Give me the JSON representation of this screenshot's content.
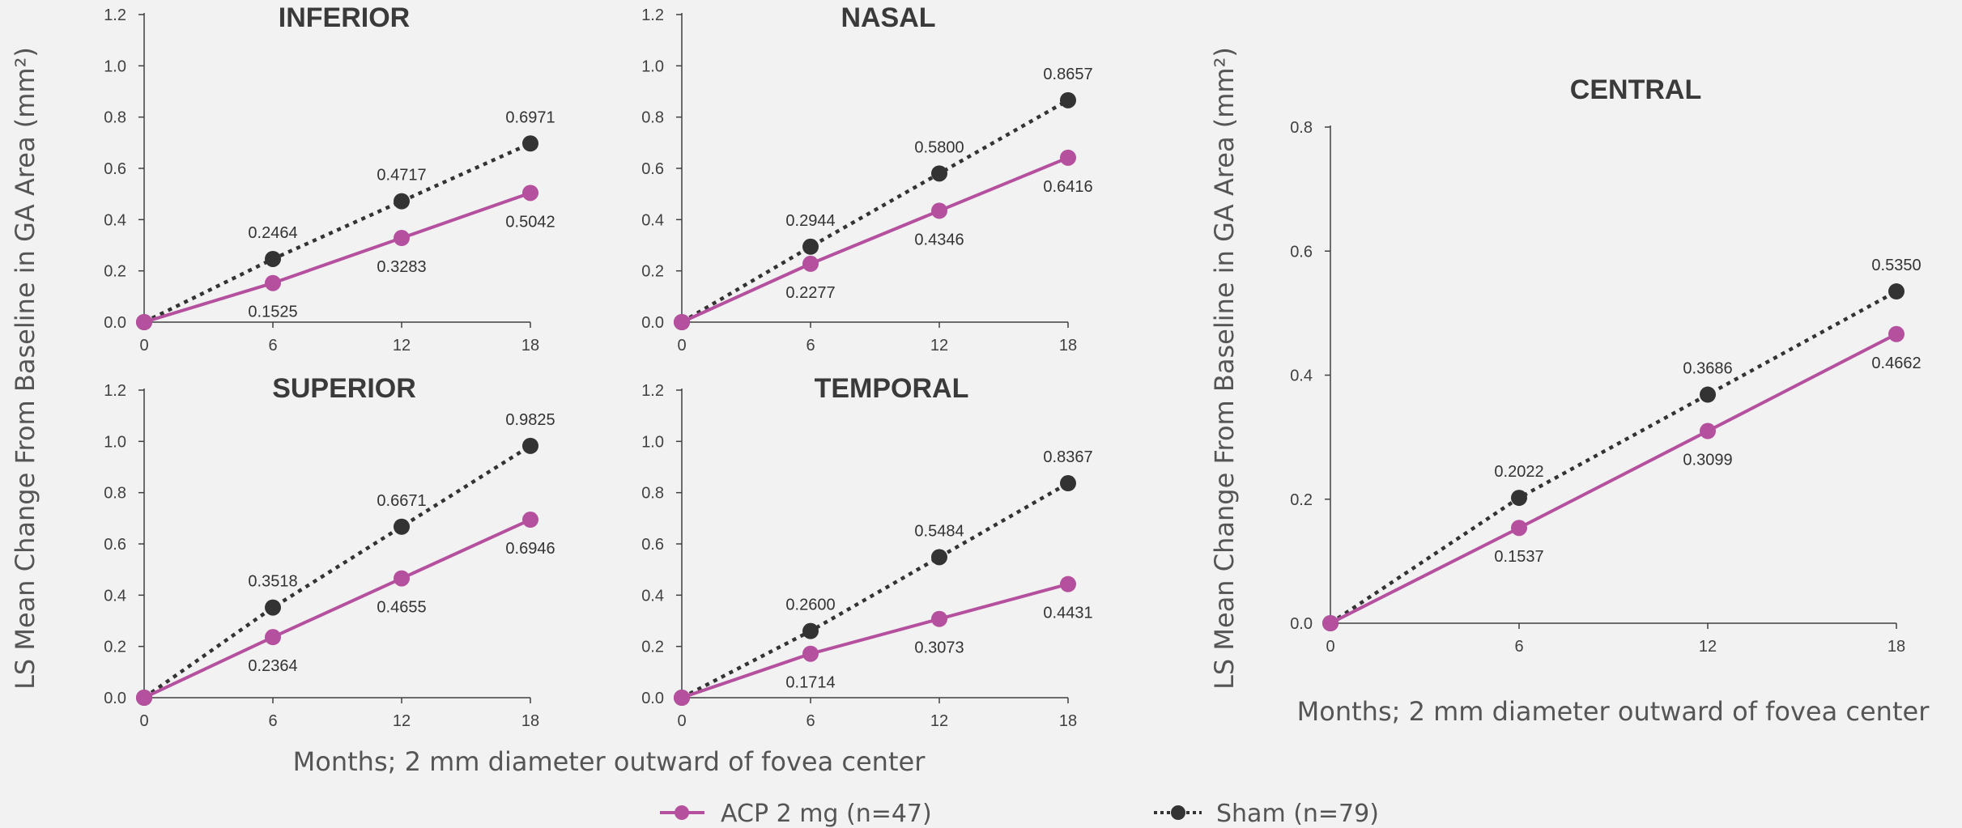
{
  "chart_data": {
    "type": "line",
    "ylabel": "LS Mean Change From Baseline in GA Area (mm²)",
    "xlabel": "Months; 2 mm diameter outward of fovea center",
    "x": [
      0,
      6,
      12,
      18
    ],
    "series_styles": {
      "ACP 2 mg (n=47)": {
        "color": "#b5509e",
        "line": "solid"
      },
      "Sham (n=79)": {
        "color": "#333333",
        "line": "dotted"
      }
    },
    "legend": [
      "ACP 2 mg (n=47)",
      "Sham (n=79)"
    ],
    "legend_position": "bottom",
    "panels": [
      {
        "title": "INFERIOR",
        "ylim": [
          0,
          1.2
        ],
        "yticks": [
          "0.0",
          "0.2",
          "0.4",
          "0.6",
          "0.8",
          "1.0",
          "1.2"
        ],
        "xticks": [
          "0",
          "6",
          "12",
          "18"
        ],
        "series": [
          {
            "name": "ACP 2 mg (n=47)",
            "values": [
              0,
              0.1525,
              0.3283,
              0.5042
            ],
            "labels": [
              "",
              "0.1525",
              "0.3283",
              "0.5042"
            ]
          },
          {
            "name": "Sham (n=79)",
            "values": [
              0,
              0.2464,
              0.4717,
              0.6971
            ],
            "labels": [
              "",
              "0.2464",
              "0.4717",
              "0.6971"
            ]
          }
        ]
      },
      {
        "title": "NASAL",
        "ylim": [
          0,
          1.2
        ],
        "yticks": [
          "0.0",
          "0.2",
          "0.4",
          "0.6",
          "0.8",
          "1.0",
          "1.2"
        ],
        "xticks": [
          "0",
          "6",
          "12",
          "18"
        ],
        "series": [
          {
            "name": "ACP 2 mg (n=47)",
            "values": [
              0,
              0.2277,
              0.4346,
              0.6416
            ],
            "labels": [
              "",
              "0.2277",
              "0.4346",
              "0.6416"
            ]
          },
          {
            "name": "Sham (n=79)",
            "values": [
              0,
              0.2944,
              0.58,
              0.8657
            ],
            "labels": [
              "",
              "0.2944",
              "0.5800",
              "0.8657"
            ]
          }
        ]
      },
      {
        "title": "SUPERIOR",
        "ylim": [
          0,
          1.2
        ],
        "yticks": [
          "0.0",
          "0.2",
          "0.4",
          "0.6",
          "0.8",
          "1.0",
          "1.2"
        ],
        "xticks": [
          "0",
          "6",
          "12",
          "18"
        ],
        "series": [
          {
            "name": "ACP 2 mg (n=47)",
            "values": [
              0,
              0.2364,
              0.4655,
              0.6946
            ],
            "labels": [
              "",
              "0.2364",
              "0.4655",
              "0.6946"
            ]
          },
          {
            "name": "Sham (n=79)",
            "values": [
              0,
              0.3518,
              0.6671,
              0.9825
            ],
            "labels": [
              "",
              "0.3518",
              "0.6671",
              "0.9825"
            ]
          }
        ]
      },
      {
        "title": "TEMPORAL",
        "ylim": [
          0,
          1.2
        ],
        "yticks": [
          "0.0",
          "0.2",
          "0.4",
          "0.6",
          "0.8",
          "1.0",
          "1.2"
        ],
        "xticks": [
          "0",
          "6",
          "12",
          "18"
        ],
        "series": [
          {
            "name": "ACP 2 mg (n=47)",
            "values": [
              0,
              0.1714,
              0.3073,
              0.4431
            ],
            "labels": [
              "",
              "0.1714",
              "0.3073",
              "0.4431"
            ]
          },
          {
            "name": "Sham (n=79)",
            "values": [
              0,
              0.26,
              0.5484,
              0.8367
            ],
            "labels": [
              "",
              "0.2600",
              "0.5484",
              "0.8367"
            ]
          }
        ]
      },
      {
        "title": "CENTRAL",
        "ylim": [
          0,
          0.8
        ],
        "yticks": [
          "0.0",
          "0.2",
          "0.4",
          "0.6",
          "0.8"
        ],
        "xticks": [
          "0",
          "6",
          "12",
          "18"
        ],
        "series": [
          {
            "name": "ACP 2 mg (n=47)",
            "values": [
              0,
              0.1537,
              0.3099,
              0.4662
            ],
            "labels": [
              "",
              "0.1537",
              "0.3099",
              "0.4662"
            ]
          },
          {
            "name": "Sham (n=79)",
            "values": [
              0,
              0.2022,
              0.3686,
              0.535
            ],
            "labels": [
              "",
              "0.2022",
              "0.3686",
              "0.5350"
            ]
          }
        ]
      }
    ]
  }
}
